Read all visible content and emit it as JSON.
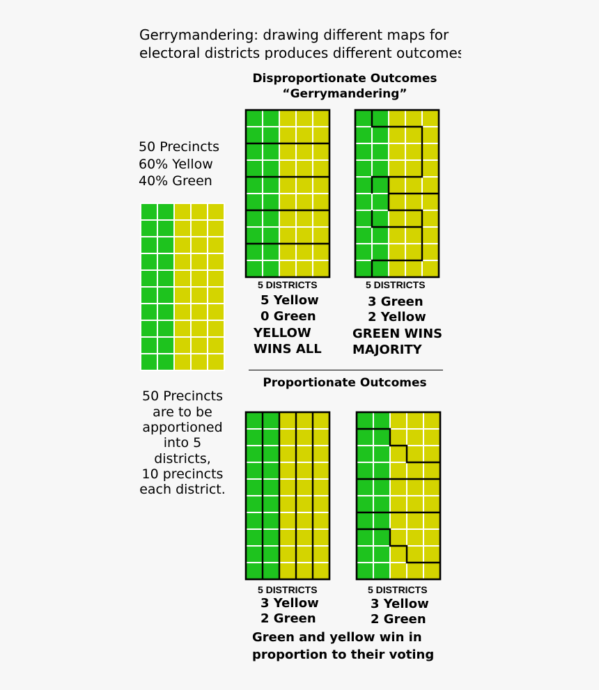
{
  "title_lines": [
    "Gerrymandering: drawing different maps for",
    "electoral districts produces different outcomes"
  ],
  "disproportionate": {
    "heading_lines": [
      "Disproportionate Outcomes",
      "“Gerrymandering”"
    ],
    "map_a": {
      "districts_label": "5 DISTRICTS",
      "result_lines": [
        "5 Yellow",
        "0 Green"
      ],
      "verdict_lines": [
        "YELLOW",
        "WINS ALL"
      ]
    },
    "map_b": {
      "districts_label": "5 DISTRICTS",
      "result_lines": [
        "3 Green",
        "2 Yellow"
      ],
      "verdict_lines": [
        "GREEN WINS",
        "MAJORITY"
      ]
    }
  },
  "proportionate": {
    "heading": "Proportionate Outcomes",
    "map_c": {
      "districts_label": "5 DISTRICTS",
      "result_lines": [
        "3 Yellow",
        "2 Green"
      ]
    },
    "map_d": {
      "districts_label": "5 DISTRICTS",
      "result_lines": [
        "3 Yellow",
        "2 Green"
      ]
    },
    "conclusion_lines": [
      "Green and yellow win in",
      "proportion to their voting"
    ]
  },
  "summary": {
    "lines": [
      "50 Precincts",
      "60% Yellow",
      "40% Green"
    ]
  },
  "apportion": {
    "lines": [
      "50 Precincts",
      "are to be",
      "apportioned",
      "into 5",
      "districts,",
      "10 precincts",
      "each district."
    ]
  },
  "grid": {
    "rows": 10,
    "cols": 5,
    "green_cols": 2,
    "precincts": 50,
    "districts": 5
  },
  "colors": {
    "green": "#1ec31e",
    "yellow": "#d4d400",
    "cell_line": "#ffffff",
    "border": "#000000",
    "background": "#f7f7f7"
  }
}
